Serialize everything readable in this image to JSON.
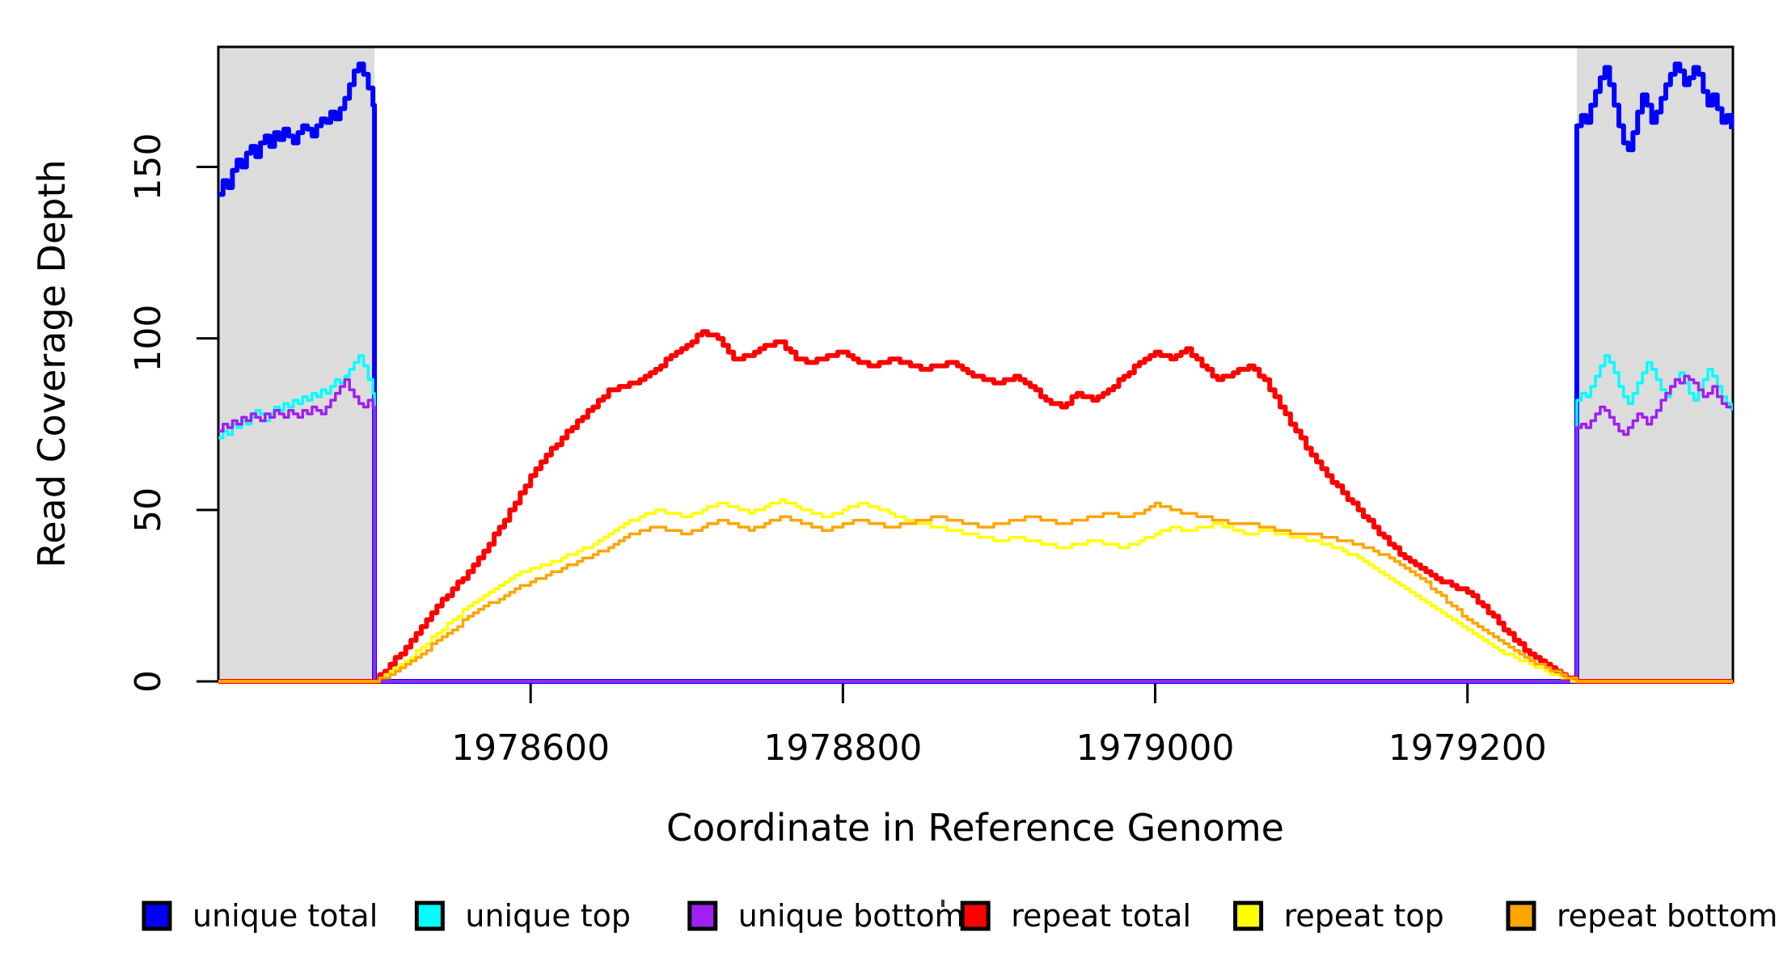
{
  "figure": {
    "background": "#ffffff",
    "frame_color": "#000000"
  },
  "chart_data": {
    "type": "line",
    "title": "",
    "xlabel": "Coordinate in Reference Genome",
    "ylabel": "Read Coverage Depth",
    "xlim": [
      1978400,
      1979370
    ],
    "ylim": [
      0,
      185
    ],
    "grid": false,
    "legend_position": "bottom-horizontal",
    "xticks": {
      "values": [
        1978600,
        1978800,
        1979000,
        1979200
      ],
      "labels": [
        "1978600",
        "1978800",
        "1979000",
        "1979200"
      ]
    },
    "yticks": {
      "values": [
        0,
        50,
        100,
        150
      ],
      "labels": [
        "0",
        "50",
        "100",
        "150"
      ]
    },
    "shaded_regions": [
      {
        "from": 1978400,
        "to": 1978500,
        "color": "#DCDCDC",
        "meaning": "flanking unique region (left)"
      },
      {
        "from": 1979270,
        "to": 1979370,
        "color": "#DCDCDC",
        "meaning": "flanking unique region (right)"
      }
    ],
    "series": [
      {
        "name": "unique total",
        "color": "#0000FF",
        "line_width": 6,
        "segments": [
          {
            "x0": 1978400,
            "dx": 3,
            "v": [
              142,
              146,
              144,
              149,
              152,
              150,
              154,
              156,
              153,
              157,
              159,
              156,
              160,
              158,
              161,
              159,
              157,
              160,
              162,
              161,
              159,
              162,
              164,
              163,
              166,
              164,
              167,
              170,
              174,
              178,
              180,
              177,
              173,
              168
            ]
          },
          {
            "pts": [
              [
                1978500,
                0
              ],
              [
                1979270,
                0
              ]
            ]
          },
          {
            "x0": 1979270,
            "dx": 3,
            "v": [
              162,
              165,
              163,
              168,
              172,
              176,
              179,
              174,
              168,
              162,
              157,
              155,
              160,
              166,
              171,
              168,
              163,
              166,
              170,
              174,
              177,
              180,
              178,
              174,
              176,
              179,
              177,
              172,
              168,
              171,
              167,
              163,
              165,
              161
            ]
          }
        ]
      },
      {
        "name": "unique top",
        "color": "#00FFFF",
        "line_width": 3.5,
        "segments": [
          {
            "x0": 1978400,
            "dx": 3,
            "v": [
              71,
              73,
              72,
              75,
              74,
              76,
              75,
              77,
              79,
              78,
              76,
              78,
              80,
              79,
              81,
              80,
              82,
              81,
              83,
              82,
              84,
              83,
              85,
              84,
              86,
              88,
              87,
              89,
              91,
              93,
              95,
              92,
              88,
              84
            ]
          },
          {
            "pts": [
              [
                1978500,
                0
              ],
              [
                1979270,
                0
              ]
            ]
          },
          {
            "x0": 1979270,
            "dx": 3,
            "v": [
              82,
              84,
              83,
              86,
              89,
              92,
              95,
              93,
              90,
              86,
              83,
              81,
              84,
              87,
              90,
              93,
              91,
              88,
              85,
              83,
              86,
              88,
              90,
              87,
              84,
              82,
              85,
              88,
              91,
              89,
              86,
              83,
              81,
              79
            ]
          }
        ]
      },
      {
        "name": "unique bottom",
        "color": "#A020F0",
        "line_width": 3.5,
        "segments": [
          {
            "x0": 1978400,
            "dx": 3,
            "v": [
              73,
              75,
              74,
              76,
              75,
              77,
              76,
              78,
              77,
              76,
              78,
              77,
              79,
              78,
              77,
              79,
              78,
              77,
              79,
              78,
              80,
              79,
              78,
              80,
              82,
              84,
              86,
              88,
              85,
              83,
              81,
              80,
              82,
              80
            ]
          },
          {
            "pts": [
              [
                1978500,
                0
              ],
              [
                1979270,
                0
              ]
            ]
          },
          {
            "x0": 1979270,
            "dx": 3,
            "v": [
              74,
              75,
              74,
              76,
              78,
              80,
              79,
              77,
              75,
              73,
              72,
              74,
              76,
              78,
              77,
              75,
              77,
              79,
              82,
              84,
              86,
              88,
              87,
              89,
              88,
              87,
              85,
              83,
              84,
              86,
              83,
              81,
              80,
              80
            ]
          }
        ]
      },
      {
        "name": "repeat total",
        "color": "#FF0000",
        "line_width": 6,
        "segments": [
          {
            "pts": [
              [
                1978400,
                0
              ],
              [
                1978500,
                0
              ]
            ]
          },
          {
            "x0": 1978500,
            "dx": 10,
            "v": [
              0,
              5,
              10,
              16,
              22,
              27,
              32,
              38,
              45,
              52,
              60,
              66,
              71,
              76,
              80,
              85,
              86,
              88,
              91,
              95,
              98,
              102,
              100,
              94,
              95,
              98,
              99,
              94,
              93,
              95,
              96,
              93,
              92,
              94,
              93,
              91,
              92,
              93,
              90,
              88,
              87,
              89,
              86,
              82,
              80,
              84,
              82,
              85,
              89,
              93,
              96,
              94,
              97,
              92,
              88,
              90,
              92,
              88,
              80,
              73,
              66,
              60,
              55,
              50,
              45,
              40,
              36,
              33,
              30,
              28,
              26,
              22,
              17,
              12,
              8,
              5,
              2,
              0
            ]
          },
          {
            "pts": [
              [
                1979270,
                0
              ],
              [
                1979370,
                0
              ]
            ]
          }
        ]
      },
      {
        "name": "repeat top",
        "color": "#FFFF00",
        "line_width": 3.5,
        "segments": [
          {
            "pts": [
              [
                1978400,
                0
              ],
              [
                1978500,
                0
              ]
            ]
          },
          {
            "x0": 1978500,
            "dx": 10,
            "v": [
              0,
              3,
              6,
              10,
              14,
              18,
              22,
              25,
              28,
              31,
              33,
              34,
              36,
              38,
              40,
              43,
              46,
              48,
              50,
              49,
              48,
              50,
              52,
              51,
              49,
              51,
              53,
              51,
              49,
              48,
              50,
              52,
              51,
              49,
              47,
              46,
              45,
              44,
              43,
              42,
              41,
              42,
              41,
              40,
              39,
              40,
              41,
              40,
              39,
              41,
              43,
              45,
              44,
              45,
              46,
              44,
              43,
              44,
              43,
              42,
              41,
              40,
              38,
              36,
              33,
              30,
              27,
              24,
              21,
              18,
              15,
              12,
              9,
              7,
              5,
              3,
              1,
              0
            ]
          },
          {
            "pts": [
              [
                1979270,
                0
              ],
              [
                1979370,
                0
              ]
            ]
          }
        ]
      },
      {
        "name": "repeat bottom",
        "color": "#FFA500",
        "line_width": 3.5,
        "segments": [
          {
            "pts": [
              [
                1978400,
                0
              ],
              [
                1978500,
                0
              ]
            ]
          },
          {
            "x0": 1978500,
            "dx": 10,
            "v": [
              0,
              2,
              5,
              8,
              12,
              15,
              19,
              22,
              24,
              27,
              29,
              31,
              33,
              35,
              37,
              39,
              42,
              44,
              45,
              44,
              43,
              45,
              47,
              46,
              44,
              46,
              48,
              47,
              45,
              44,
              46,
              47,
              46,
              45,
              46,
              47,
              48,
              47,
              46,
              45,
              46,
              47,
              48,
              47,
              46,
              47,
              48,
              49,
              48,
              49,
              52,
              50,
              49,
              48,
              47,
              46,
              46,
              45,
              44,
              43,
              43,
              42,
              41,
              40,
              38,
              36,
              33,
              30,
              26,
              22,
              18,
              15,
              12,
              9,
              6,
              4,
              2,
              0
            ]
          },
          {
            "pts": [
              [
                1979270,
                0
              ],
              [
                1979370,
                0
              ]
            ]
          }
        ]
      }
    ],
    "legend": {
      "entries": [
        {
          "label": "unique total",
          "color": "#0000FF"
        },
        {
          "label": "unique top",
          "color": "#00FFFF"
        },
        {
          "label": "unique bottom",
          "color": "#A020F0"
        },
        {
          "label": "repeat total",
          "color": "#FF0000"
        },
        {
          "label": "repeat top",
          "color": "#FFFF00"
        },
        {
          "label": "repeat bottom",
          "color": "#FFA500"
        }
      ]
    }
  }
}
